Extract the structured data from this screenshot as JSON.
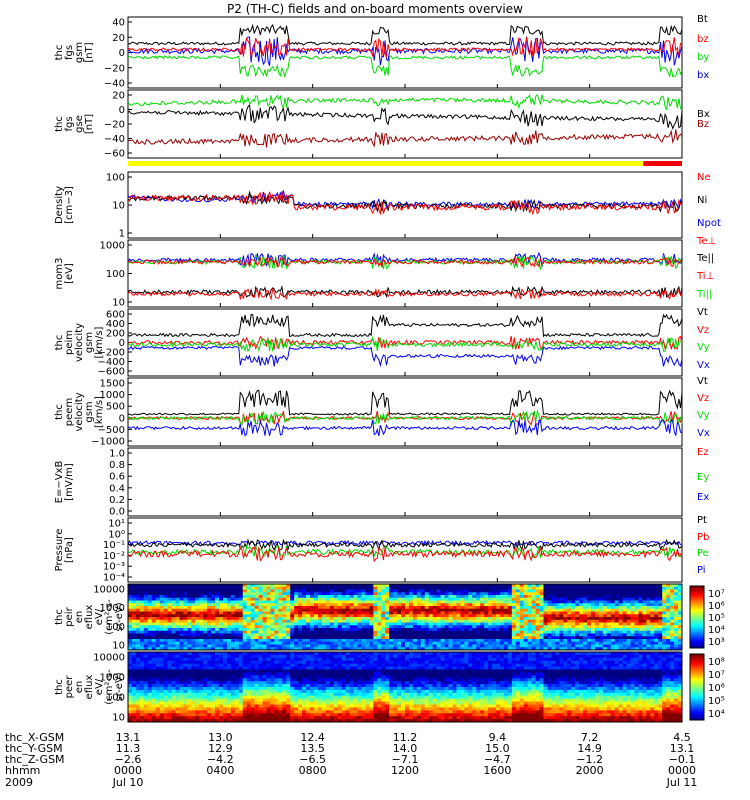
{
  "title": "P2 (TH-C) fields and on-board moments overview",
  "colors": {
    "black": "#000000",
    "red": "#ff0000",
    "green": "#00dd00",
    "blue": "#0000ff",
    "darkred": "#990000",
    "yellow": "#ffff00",
    "ttl_red": "#ee0000"
  },
  "chart_data": [
    {
      "type": "line",
      "panel": "fgs_gsm",
      "ylabel_lines": [
        "thc",
        "fgs",
        "gsm",
        "[nT]"
      ],
      "yticks": [
        "40",
        "20",
        "0",
        "−20",
        "−40"
      ],
      "ylim": [
        -40,
        45
      ],
      "series": [
        {
          "name": "Bt",
          "color": "black"
        },
        {
          "name": "bz",
          "color": "red"
        },
        {
          "name": "by",
          "color": "green"
        },
        {
          "name": "bx",
          "color": "blue"
        }
      ]
    },
    {
      "type": "line",
      "panel": "fgs_gse",
      "ylabel_lines": [
        "thc",
        "fgs",
        "gse",
        "[nT]"
      ],
      "yticks": [
        "20",
        "0",
        "−20",
        "−40",
        "−60"
      ],
      "ylim": [
        -70,
        35
      ],
      "series": [
        {
          "name": "Bx",
          "color": "black"
        },
        {
          "name": "Bz",
          "color": "darkred"
        }
      ]
    },
    {
      "type": "line",
      "panel": "density",
      "log": true,
      "ylabel_lines": [
        "Density",
        "[cm−3]"
      ],
      "yticks": [
        "100",
        "10",
        "1"
      ],
      "ylim": [
        0.1,
        200
      ],
      "series": [
        {
          "name": "Ne",
          "color": "red"
        },
        {
          "name": "Ni",
          "color": "black"
        },
        {
          "name": "Npot",
          "color": "blue"
        }
      ]
    },
    {
      "type": "line",
      "panel": "temperature",
      "log": true,
      "ylabel_lines": [
        "mom3",
        "[eV]"
      ],
      "yticks": [
        "1000",
        "100",
        "10"
      ],
      "ylim": [
        3,
        5000
      ],
      "series": [
        {
          "name": "Te⊥",
          "color": "red"
        },
        {
          "name": "Te||",
          "color": "black"
        },
        {
          "name": "Ti⊥",
          "color": "red"
        },
        {
          "name": "Ti||",
          "color": "green"
        }
      ]
    },
    {
      "type": "line",
      "panel": "peim_velocity",
      "ylabel_lines": [
        "thc",
        "peim",
        "velocity",
        "gsm",
        "[km/s]"
      ],
      "yticks": [
        "600",
        "400",
        "200",
        "0",
        "−200",
        "−400",
        "−600"
      ],
      "ylim": [
        -600,
        600
      ],
      "series": [
        {
          "name": "Vt",
          "color": "black"
        },
        {
          "name": "Vz",
          "color": "red"
        },
        {
          "name": "Vy",
          "color": "green"
        },
        {
          "name": "Vx",
          "color": "blue"
        }
      ]
    },
    {
      "type": "line",
      "panel": "peem_velocity",
      "ylabel_lines": [
        "thc",
        "peem",
        "velocity",
        "gsm",
        "[km/s]"
      ],
      "yticks": [
        "1500",
        "1000",
        "500",
        "0",
        "−500",
        "−1000"
      ],
      "ylim": [
        -1500,
        1500
      ],
      "series": [
        {
          "name": "Vt",
          "color": "black"
        },
        {
          "name": "Vz",
          "color": "red"
        },
        {
          "name": "Vy",
          "color": "green"
        },
        {
          "name": "Vx",
          "color": "blue"
        }
      ]
    },
    {
      "type": "line",
      "panel": "efield",
      "ylabel_lines": [
        "E=−VxB",
        "[mV/m]"
      ],
      "yticks": [
        "1.0",
        "0.8",
        "0.6",
        "0.4",
        "0.2",
        "0.0"
      ],
      "ylim": [
        0,
        1
      ],
      "series": [
        {
          "name": "Ez",
          "color": "red"
        },
        {
          "name": "Ey",
          "color": "green"
        },
        {
          "name": "Ex",
          "color": "blue"
        }
      ]
    },
    {
      "type": "line",
      "panel": "pressure",
      "log": true,
      "ylabel_lines": [
        "Pressure",
        "[nPa]"
      ],
      "yticks": [
        "10¹",
        "10⁰",
        "10⁻¹",
        "10⁻²",
        "10⁻³",
        "10⁻⁴"
      ],
      "ylim": [
        0.0001,
        10
      ],
      "series": [
        {
          "name": "Pt",
          "color": "black"
        },
        {
          "name": "Pb",
          "color": "red"
        },
        {
          "name": "Pe",
          "color": "green"
        },
        {
          "name": "Pi",
          "color": "blue"
        }
      ]
    },
    {
      "type": "heatmap",
      "panel": "peir_spectrogram",
      "ylabel_lines": [
        "thc",
        "peir",
        "en",
        "eflux",
        "eV/",
        "(cm²-s-",
        "sr-eV)"
      ],
      "yticks": [
        "10000",
        "1000",
        "100",
        "10"
      ],
      "colorbar_ticks": [
        "10⁷",
        "10⁶",
        "10⁵",
        "10⁴",
        "10³"
      ]
    },
    {
      "type": "heatmap",
      "panel": "peer_spectrogram",
      "ylabel_lines": [
        "thc",
        "peer",
        "en",
        "eflux",
        "eV/",
        "(cm²-s-",
        "sr-eV)"
      ],
      "yticks": [
        "10000",
        "1000",
        "100",
        "10"
      ],
      "colorbar_ticks": [
        "10⁸",
        "10⁷",
        "10⁶",
        "10⁵",
        "10⁴"
      ]
    }
  ],
  "x_axis": {
    "row_labels": [
      "thc_X-GSM",
      "thc_Y-GSM",
      "thc_Z-GSM",
      "hhmm",
      "2009"
    ],
    "columns": [
      {
        "x": "13.1",
        "y": "11.3",
        "z": "−2.6",
        "hhmm": "0000",
        "date": "Jul 10"
      },
      {
        "x": "13.0",
        "y": "12.9",
        "z": "−4.2",
        "hhmm": "0400",
        "date": ""
      },
      {
        "x": "12.4",
        "y": "13.5",
        "z": "−6.5",
        "hhmm": "0800",
        "date": ""
      },
      {
        "x": "11.2",
        "y": "14.0",
        "z": "−7.1",
        "hhmm": "1200",
        "date": ""
      },
      {
        "x": "9.4",
        "y": "15.0",
        "z": "−4.7",
        "hhmm": "1600",
        "date": ""
      },
      {
        "x": "7.2",
        "y": "14.9",
        "z": "−1.2",
        "hhmm": "2000",
        "date": ""
      },
      {
        "x": "4.5",
        "y": "13.1",
        "z": "−0.1",
        "hhmm": "0000",
        "date": "Jul 11"
      }
    ]
  }
}
